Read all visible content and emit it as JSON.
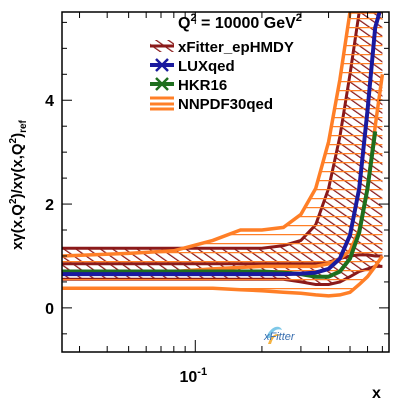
{
  "chart_data": {
    "type": "line",
    "title": "Q² = 10000 GeV²",
    "title_parts": {
      "prefix": "Q",
      "sup1": "2",
      "mid": " = 10000 GeV",
      "sup2": "2"
    },
    "xlabel": "x",
    "ylabel_parts": {
      "a": "xγ(x,Q",
      "a_sup": "2",
      "b": ")/xγ(x,Q",
      "b_sup": "2",
      "c": ")",
      "c_sub": "ref"
    },
    "x_scale": "log",
    "xlim": [
      0.025,
      0.75
    ],
    "ylim": [
      -0.85,
      5.7
    ],
    "y_ticks": [
      0,
      2,
      4
    ],
    "y_tick_labels": [
      "0",
      "2",
      "4"
    ],
    "x_ticks": [
      0.1
    ],
    "x_tick_labels": [
      "10",
      "-1"
    ],
    "grid": false,
    "legend_position": "top-right",
    "logo_text": "xFitter",
    "series": [
      {
        "name": "xFitter_epHMDY",
        "color": "#8b1a1a",
        "style": "hatched-band",
        "x": [
          0.025,
          0.05,
          0.08,
          0.12,
          0.16,
          0.2,
          0.25,
          0.3,
          0.35,
          0.4,
          0.45,
          0.5,
          0.55,
          0.6,
          0.65,
          0.7
        ],
        "central": [
          0.85,
          0.85,
          0.85,
          0.85,
          0.85,
          0.85,
          0.85,
          0.85,
          0.85,
          0.88,
          0.95,
          1.0,
          1.02,
          1.02,
          1.0,
          1.0
        ],
        "upper": [
          1.15,
          1.15,
          1.15,
          1.15,
          1.15,
          1.15,
          1.2,
          1.3,
          1.6,
          2.3,
          3.3,
          4.5,
          5.7,
          5.7,
          5.7,
          5.7
        ],
        "lower": [
          0.55,
          0.55,
          0.55,
          0.55,
          0.55,
          0.55,
          0.55,
          0.5,
          0.45,
          0.45,
          0.5,
          0.6,
          0.7,
          0.75,
          0.8,
          0.8
        ]
      },
      {
        "name": "LUXqed",
        "color": "#1a1a9e",
        "style": "line",
        "x": [
          0.025,
          0.05,
          0.08,
          0.12,
          0.16,
          0.2,
          0.25,
          0.3,
          0.35,
          0.4,
          0.45,
          0.5,
          0.55,
          0.6,
          0.65,
          0.68
        ],
        "central": [
          0.65,
          0.65,
          0.65,
          0.65,
          0.65,
          0.65,
          0.65,
          0.66,
          0.68,
          0.75,
          0.95,
          1.4,
          2.3,
          3.8,
          5.4,
          5.7
        ]
      },
      {
        "name": "HKR16",
        "color": "#1e6e1e",
        "style": "line",
        "x": [
          0.025,
          0.05,
          0.08,
          0.12,
          0.16,
          0.2,
          0.25,
          0.3,
          0.35,
          0.4,
          0.45,
          0.5,
          0.55,
          0.6,
          0.65
        ],
        "central": [
          0.7,
          0.7,
          0.7,
          0.7,
          0.7,
          0.7,
          0.68,
          0.65,
          0.6,
          0.6,
          0.7,
          0.95,
          1.45,
          2.3,
          3.4
        ]
      },
      {
        "name": "NNPDF30qed",
        "color": "#ff7f27",
        "style": "band",
        "x": [
          0.025,
          0.05,
          0.08,
          0.12,
          0.16,
          0.2,
          0.25,
          0.3,
          0.35,
          0.4,
          0.45,
          0.5,
          0.55,
          0.6,
          0.65,
          0.7
        ],
        "central": [
          0.7,
          0.7,
          0.7,
          0.75,
          0.78,
          0.8,
          0.8,
          0.8,
          0.8,
          0.85,
          0.95,
          1.1,
          1.5,
          2.3,
          3.5,
          4.5
        ],
        "upper": [
          1.0,
          1.05,
          1.1,
          1.3,
          1.5,
          1.5,
          1.55,
          1.8,
          2.3,
          3.2,
          4.4,
          5.7,
          5.7,
          5.7,
          5.7,
          5.7
        ],
        "lower": [
          0.38,
          0.38,
          0.38,
          0.38,
          0.35,
          0.33,
          0.3,
          0.28,
          0.25,
          0.23,
          0.25,
          0.3,
          0.45,
          0.6,
          0.8,
          1.0
        ]
      }
    ]
  }
}
